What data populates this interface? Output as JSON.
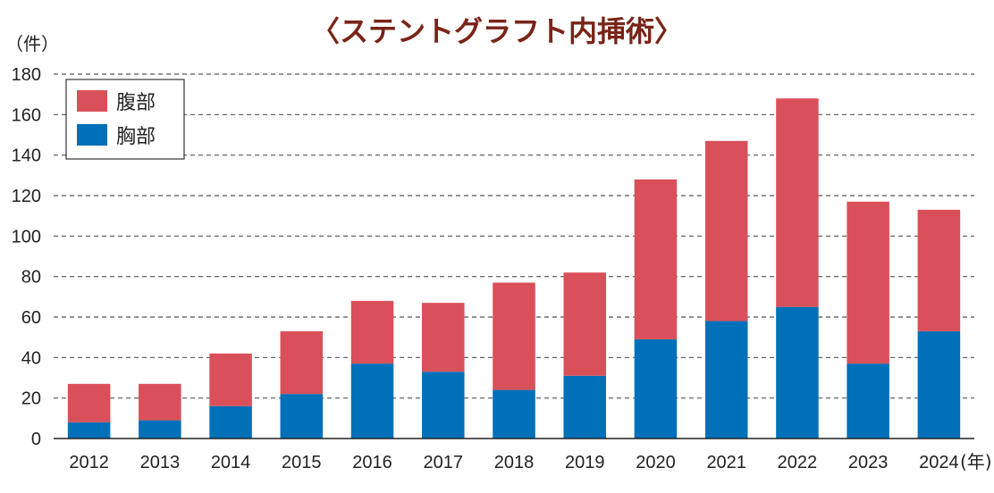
{
  "colors": {
    "title": "#7a2418",
    "abdominal": "#d9505a",
    "thoracic": "#0070b8",
    "grid": "#555555",
    "axis": "#222222"
  },
  "chart_data": {
    "type": "bar",
    "stacked": true,
    "title": "〈ステントグラフト内挿術〉",
    "y_unit": "（件）",
    "x_unit": "(年)",
    "categories": [
      "2012",
      "2013",
      "2014",
      "2015",
      "2016",
      "2017",
      "2018",
      "2019",
      "2020",
      "2021",
      "2022",
      "2023",
      "2024"
    ],
    "ylim": [
      0,
      180
    ],
    "yticks": [
      0,
      20,
      40,
      60,
      80,
      100,
      120,
      140,
      160,
      180
    ],
    "grid": true,
    "legend_position": "top-left",
    "series": [
      {
        "name": "胸部",
        "color_key": "thoracic",
        "values": [
          8,
          9,
          16,
          22,
          37,
          33,
          24,
          31,
          49,
          58,
          65,
          37,
          53
        ]
      },
      {
        "name": "腹部",
        "color_key": "abdominal",
        "values": [
          19,
          18,
          26,
          31,
          31,
          34,
          53,
          51,
          79,
          89,
          103,
          80,
          60
        ]
      }
    ]
  }
}
